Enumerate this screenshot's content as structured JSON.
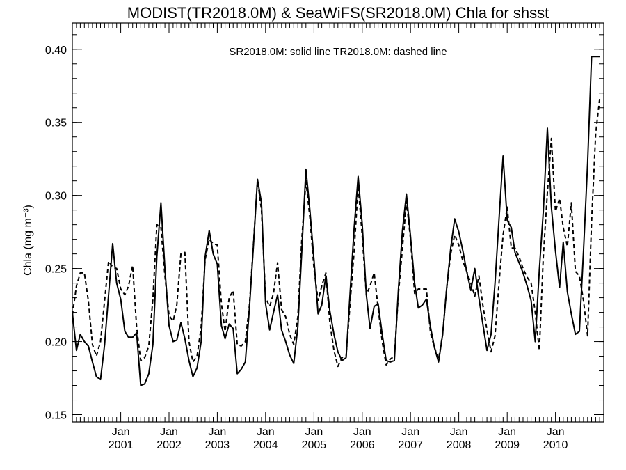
{
  "chart_data": {
    "type": "line",
    "title": "MODIST(TR2018.0M) & SeaWiFS(SR2018.0M)  Chla for shsst",
    "annotation": "SR2018.0M: solid line   TR2018.0M: dashed line",
    "ylabel": "Chla (mg m⁻³)",
    "xlabel": "",
    "ylim": [
      0.145,
      0.418
    ],
    "xlim": [
      "2000-01-01",
      "2011-01-01"
    ],
    "yticks": [
      0.15,
      0.2,
      0.25,
      0.3,
      0.35,
      0.4
    ],
    "ytick_labels": [
      "0.15",
      "0.20",
      "0.25",
      "0.30",
      "0.35",
      "0.40"
    ],
    "xticks": [
      "2001-01",
      "2002-01",
      "2003-01",
      "2004-01",
      "2005-01",
      "2006-01",
      "2007-01",
      "2008-01",
      "2009-01",
      "2010-01"
    ],
    "xtick_month_label": "Jan",
    "xtick_year_labels": [
      "2001",
      "2002",
      "2003",
      "2004",
      "2005",
      "2006",
      "2007",
      "2008",
      "2009",
      "2010"
    ],
    "x_monthly_start": "2000-01",
    "grid": false,
    "legend": "none",
    "series": [
      {
        "name": "SR2018.0M",
        "style": "solid",
        "color": "#000000",
        "x": [
          "2000-01",
          "2000-02",
          "2000-03",
          "2000-04",
          "2000-05",
          "2000-06",
          "2000-07",
          "2000-08",
          "2000-09",
          "2000-10",
          "2000-11",
          "2000-12",
          "2001-01",
          "2001-02",
          "2001-03",
          "2001-04",
          "2001-05",
          "2001-06",
          "2001-07",
          "2001-08",
          "2001-09",
          "2001-10",
          "2001-11",
          "2001-12",
          "2002-01",
          "2002-02",
          "2002-03",
          "2002-04",
          "2002-05",
          "2002-06",
          "2002-07",
          "2002-08",
          "2002-09",
          "2002-10",
          "2002-11",
          "2002-12",
          "2003-01",
          "2003-02",
          "2003-03",
          "2003-04",
          "2003-05",
          "2003-06",
          "2003-07",
          "2003-08",
          "2003-09",
          "2003-10",
          "2003-11",
          "2003-12",
          "2004-01",
          "2004-02",
          "2004-03",
          "2004-04",
          "2004-05",
          "2004-06",
          "2004-07",
          "2004-08",
          "2004-09",
          "2004-10",
          "2004-11",
          "2004-12",
          "2005-01",
          "2005-02",
          "2005-03",
          "2005-04",
          "2005-05",
          "2005-06",
          "2005-07",
          "2005-08",
          "2005-09",
          "2005-10",
          "2005-11",
          "2005-12",
          "2006-01",
          "2006-02",
          "2006-03",
          "2006-04",
          "2006-05",
          "2006-06",
          "2006-07",
          "2006-08",
          "2006-09",
          "2006-10",
          "2006-11",
          "2006-12",
          "2007-01",
          "2007-02",
          "2007-03",
          "2007-04",
          "2007-05",
          "2007-06",
          "2007-07",
          "2007-08",
          "2007-09",
          "2007-10",
          "2007-11",
          "2007-12"
        ],
        "values": [
          0.22,
          0.194,
          0.205,
          0.2,
          0.197,
          0.186,
          0.176,
          0.174,
          0.198,
          0.232,
          0.267,
          0.24,
          0.229,
          0.207,
          0.203,
          0.203,
          0.206,
          0.17,
          0.171,
          0.178,
          0.198,
          0.258,
          0.295,
          0.25,
          0.211,
          0.2,
          0.201,
          0.213,
          0.202,
          0.187,
          0.176,
          0.182,
          0.2,
          0.258,
          0.276,
          0.26,
          0.253,
          0.211,
          0.202,
          0.212,
          0.209,
          0.178,
          0.181,
          0.186,
          0.223,
          0.265,
          0.311,
          0.295,
          0.226,
          0.208,
          0.22,
          0.232,
          0.208,
          0.2,
          0.191,
          0.185,
          0.21,
          0.262,
          0.318,
          0.29,
          0.256,
          0.219,
          0.225,
          0.245,
          0.221,
          0.205,
          0.193,
          0.187,
          0.189,
          0.233,
          0.278,
          0.313,
          0.28,
          0.232,
          0.209,
          0.224,
          0.226,
          0.205,
          0.187,
          0.186,
          0.187,
          0.235,
          0.276,
          0.301,
          0.272,
          0.24,
          0.223,
          0.225,
          0.229,
          0.21,
          0.196,
          0.186,
          0.205,
          0.236,
          0.264,
          0.284
        ]
      },
      {
        "name": "TR2018.0M",
        "style": "dashed",
        "color": "#000000",
        "x": [
          "2000-01",
          "2000-02",
          "2000-03",
          "2000-04",
          "2000-05",
          "2000-06",
          "2000-07",
          "2000-08",
          "2000-09",
          "2000-10",
          "2000-11",
          "2000-12",
          "2001-01",
          "2001-02",
          "2001-03",
          "2001-04",
          "2001-05",
          "2001-06",
          "2001-07",
          "2001-08",
          "2001-09",
          "2001-10",
          "2001-11",
          "2001-12",
          "2002-01",
          "2002-02",
          "2002-03",
          "2002-04",
          "2002-05",
          "2002-06",
          "2002-07",
          "2002-08",
          "2002-09",
          "2002-10",
          "2002-11",
          "2002-12",
          "2003-01",
          "2003-02",
          "2003-03",
          "2003-04",
          "2003-05",
          "2003-06",
          "2003-07",
          "2003-08",
          "2003-09",
          "2003-10",
          "2003-11",
          "2003-12",
          "2004-01",
          "2004-02",
          "2004-03",
          "2004-04",
          "2004-05",
          "2004-06",
          "2004-07",
          "2004-08",
          "2004-09",
          "2004-10",
          "2004-11",
          "2004-12",
          "2005-01",
          "2005-02",
          "2005-03",
          "2005-04",
          "2005-05",
          "2005-06",
          "2005-07",
          "2005-08",
          "2005-09",
          "2005-10",
          "2005-11",
          "2005-12",
          "2006-01",
          "2006-02",
          "2006-03",
          "2006-04",
          "2006-05",
          "2006-06",
          "2006-07",
          "2006-08",
          "2006-09",
          "2006-10",
          "2006-11",
          "2006-12",
          "2007-01",
          "2007-02",
          "2007-03",
          "2007-04",
          "2007-05",
          "2007-06",
          "2007-07",
          "2007-08",
          "2007-09",
          "2007-10",
          "2007-11",
          "2007-12",
          "2008-01",
          "2008-02",
          "2008-03",
          "2008-04",
          "2008-05",
          "2008-06",
          "2008-07",
          "2008-08",
          "2008-09",
          "2008-10",
          "2008-11",
          "2008-12",
          "2009-01",
          "2009-02",
          "2009-03",
          "2009-04",
          "2009-05",
          "2009-06",
          "2009-07",
          "2009-08",
          "2009-09",
          "2009-10",
          "2009-11",
          "2009-12",
          "2010-01",
          "2010-02",
          "2010-03",
          "2010-04",
          "2010-05",
          "2010-06",
          "2010-07",
          "2010-08",
          "2010-09",
          "2010-10",
          "2010-11",
          "2010-12"
        ],
        "values": [
          0.218,
          0.238,
          0.247,
          0.247,
          0.228,
          0.198,
          0.19,
          0.2,
          0.228,
          0.255,
          0.251,
          0.25,
          0.236,
          0.232,
          0.238,
          0.252,
          0.21,
          0.187,
          0.189,
          0.197,
          0.229,
          0.28,
          0.278,
          0.245,
          0.218,
          0.214,
          0.225,
          0.26,
          0.261,
          0.2,
          0.186,
          0.19,
          0.21,
          0.256,
          0.27,
          0.267,
          0.266,
          0.226,
          0.207,
          0.23,
          0.235,
          0.198,
          0.197,
          0.2,
          0.225,
          0.266,
          0.311,
          0.29,
          0.23,
          0.224,
          0.233,
          0.254,
          0.222,
          0.217,
          0.205,
          0.198,
          0.217,
          0.27,
          0.31,
          0.285,
          0.25,
          0.228,
          0.238,
          0.247,
          0.213,
          0.194,
          0.183,
          0.189,
          0.19,
          0.226,
          0.262,
          0.307,
          0.272,
          0.232,
          0.238,
          0.247,
          0.223,
          0.2,
          0.184,
          0.188,
          0.19,
          0.232,
          0.264,
          0.296,
          0.27,
          0.233,
          0.236,
          0.236,
          0.236,
          0.206,
          0.196,
          0.188,
          0.205,
          0.236,
          0.26,
          0.273,
          0.266,
          0.255,
          0.248,
          0.24,
          0.231,
          0.245,
          0.225,
          0.208,
          0.193,
          0.204,
          0.241,
          0.273,
          0.292,
          0.264,
          0.264,
          0.258,
          0.25,
          0.244,
          0.24,
          0.22,
          0.194,
          0.258,
          0.302,
          0.339,
          0.289,
          0.298,
          0.278,
          0.265,
          0.295,
          0.248,
          0.245,
          0.228,
          0.204,
          0.282,
          0.342,
          0.366
        ]
      }
    ],
    "continuation_solid": {
      "x": [
        "2008-01",
        "2008-02",
        "2008-03",
        "2008-04",
        "2008-05",
        "2008-06",
        "2008-07",
        "2008-08",
        "2008-09",
        "2008-10",
        "2008-11",
        "2008-12",
        "2009-01",
        "2009-02",
        "2009-03",
        "2009-04",
        "2009-05",
        "2009-06",
        "2009-07",
        "2009-08",
        "2009-09",
        "2009-10",
        "2009-11",
        "2009-12",
        "2010-01",
        "2010-02",
        "2010-03",
        "2010-04",
        "2010-05",
        "2010-06",
        "2010-07",
        "2010-08",
        "2010-09",
        "2010-10",
        "2010-11",
        "2010-12"
      ],
      "values": [
        0.275,
        0.262,
        0.248,
        0.235,
        0.25,
        0.23,
        0.212,
        0.194,
        0.205,
        0.24,
        0.285,
        0.327,
        0.283,
        0.278,
        0.261,
        0.254,
        0.247,
        0.238,
        0.228,
        0.2,
        0.249,
        0.289,
        0.346,
        0.292,
        0.262,
        0.237,
        0.268,
        0.234,
        0.219,
        0.205,
        0.207,
        0.262,
        0.322,
        0.395,
        0.395,
        0.395
      ]
    }
  }
}
